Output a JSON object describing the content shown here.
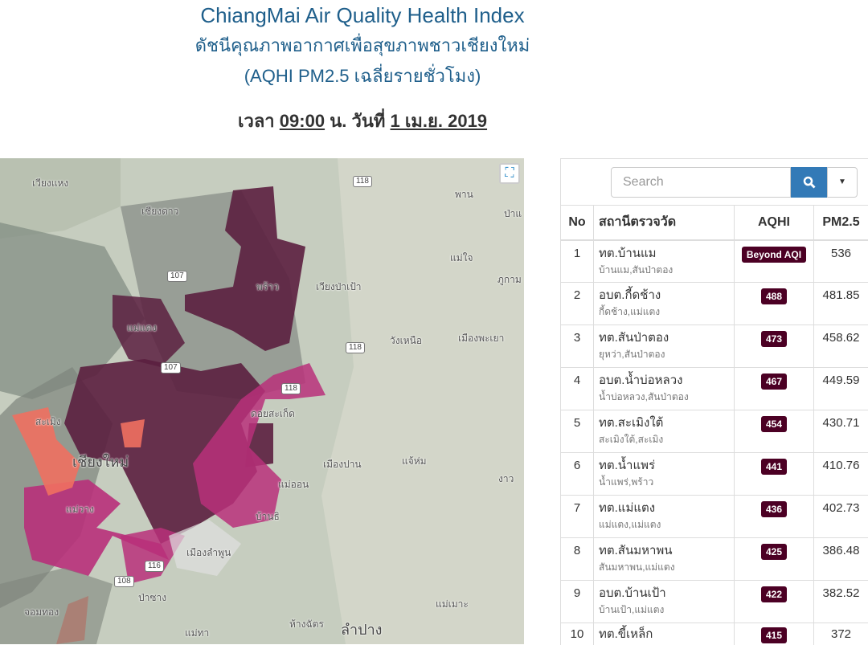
{
  "header": {
    "title": "ChiangMai Air Quality Health Index",
    "subtitle_th": "ดัชนีคุณภาพอากาศเพื่อสุขภาพชาวเชียงใหม่",
    "subtitle_2": "(AQHI PM2.5 เฉลี่ยรายชั่วโมง)",
    "time_prefix": "เวลา",
    "time": "09:00",
    "time_unit": "น. วันที่",
    "date": "1 เม.ย. 2019"
  },
  "map": {
    "labels": [
      "เวียงแหง",
      "เชียงดาว",
      "พาน",
      "ป่าแ",
      "แม่ใจ",
      "ภูกาม",
      "พร้าว",
      "เวียงป่าเป้า",
      "วังเหนือ",
      "เมืองพะเยา",
      "แม่แตง",
      "สะเมิง",
      "เชียงใหม่",
      "ดอยสะเก็ด",
      "เมืองปาน",
      "แจ้ห่ม",
      "งาว",
      "แม่วาง",
      "แม่ออน",
      "บ้านธิ",
      "เมืองลำพูน",
      "ป่าซาง",
      "แม่ทา",
      "ห้างฉัตร",
      "ลำปาง",
      "แม่เมาะ",
      "จอมทอง"
    ],
    "shields": [
      "118",
      "107",
      "118",
      "107",
      "118",
      "116",
      "108"
    ],
    "fullscreen_icon": "expand-icon",
    "colors": {
      "very_high": "#5b1f3f",
      "high": "#b8307a",
      "moderate": "#f07060",
      "no_data": "#7d7d7d"
    }
  },
  "search": {
    "placeholder": "Search",
    "button_icon": "search-icon",
    "dropdown_icon": "caret-down-icon",
    "accent": "#337ab7"
  },
  "table": {
    "headers": [
      "No",
      "สถานีตรวจวัด",
      "AQHI",
      "PM2.5"
    ],
    "badge_color": "#4c0024",
    "rows": [
      {
        "no": "1",
        "name": "ทต.บ้านแม",
        "area": "บ้านแม,สันป่าตอง",
        "aqhi": "Beyond AQI",
        "pm": "536"
      },
      {
        "no": "2",
        "name": "อบต.กี้ดช้าง",
        "area": "กี้ดช้าง,แม่แตง",
        "aqhi": "488",
        "pm": "481.85"
      },
      {
        "no": "3",
        "name": "ทต.สันป่าตอง",
        "area": "ยุหว่า,สันป่าตอง",
        "aqhi": "473",
        "pm": "458.62"
      },
      {
        "no": "4",
        "name": "อบต.น้ำบ่อหลวง",
        "area": "น้ำบ่อหลวง,สันป่าตอง",
        "aqhi": "467",
        "pm": "449.59"
      },
      {
        "no": "5",
        "name": "ทต.สะเมิงใต้",
        "area": "สะเมิงใต้,สะเมิง",
        "aqhi": "454",
        "pm": "430.71"
      },
      {
        "no": "6",
        "name": "ทต.น้ำแพร่",
        "area": "น้ำแพร่,พร้าว",
        "aqhi": "441",
        "pm": "410.76"
      },
      {
        "no": "7",
        "name": "ทต.แม่แตง",
        "area": "แม่แตง,แม่แตง",
        "aqhi": "436",
        "pm": "402.73"
      },
      {
        "no": "8",
        "name": "ทต.สันมหาพน",
        "area": "สันมหาพน,แม่แตง",
        "aqhi": "425",
        "pm": "386.48"
      },
      {
        "no": "9",
        "name": "อบต.บ้านเป้า",
        "area": "บ้านเป้า,แม่แตง",
        "aqhi": "422",
        "pm": "382.52"
      },
      {
        "no": "10",
        "name": "ทต.ขี้เหล็ก",
        "area": "",
        "aqhi": "415",
        "pm": "372"
      }
    ]
  }
}
